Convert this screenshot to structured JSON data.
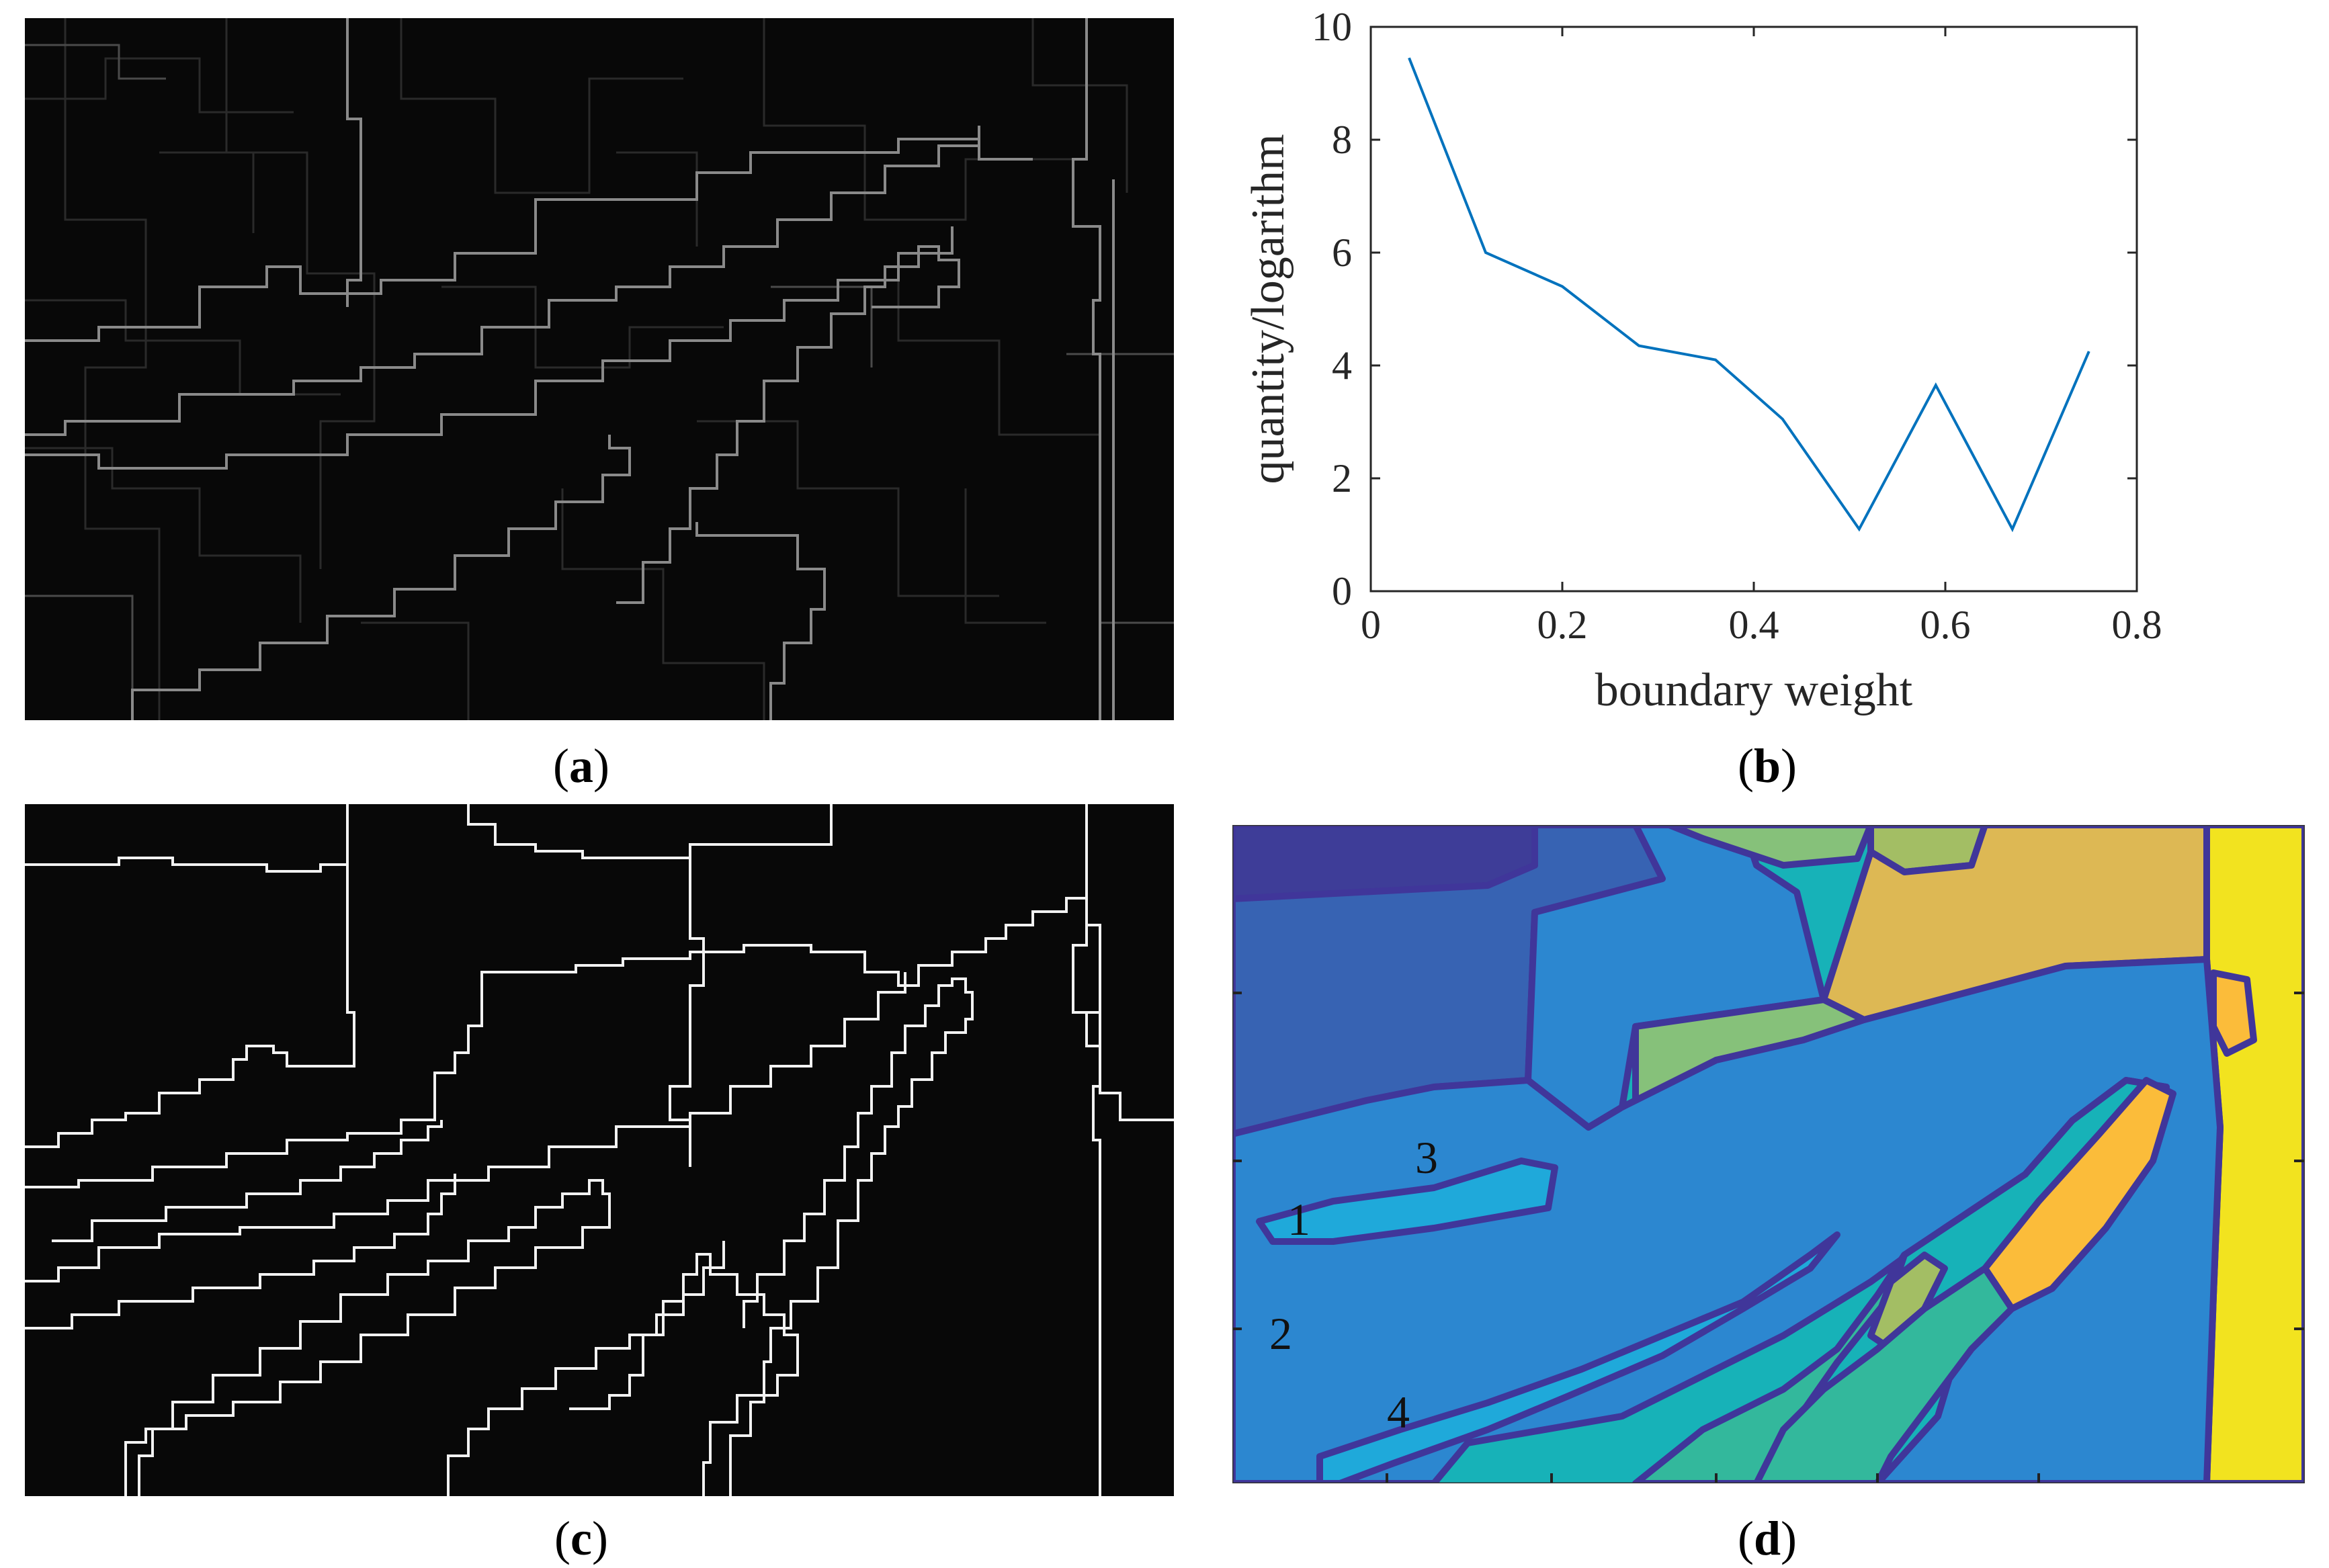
{
  "panels": {
    "a": {
      "open": "(",
      "letter": "a",
      "close": ")"
    },
    "b": {
      "open": "(",
      "letter": "b",
      "close": ")"
    },
    "c": {
      "open": "(",
      "letter": "c",
      "close": ")"
    },
    "d": {
      "open": "(",
      "letter": "d",
      "close": ")"
    }
  },
  "chart_data": {
    "type": "line",
    "title": "",
    "xlabel": "boundary weight",
    "ylabel": "quantity/logarithm",
    "xlim": [
      0,
      0.8
    ],
    "ylim": [
      0,
      10
    ],
    "xticks": [
      0,
      0.2,
      0.4,
      0.6,
      0.8
    ],
    "xtick_labels": [
      "0",
      "0.2",
      "0.4",
      "0.6",
      "0.8"
    ],
    "yticks": [
      0,
      2,
      4,
      6,
      8,
      10
    ],
    "ytick_labels": [
      "0",
      "2",
      "4",
      "6",
      "8",
      "10"
    ],
    "grid": false,
    "series": [
      {
        "color": "#0072BD",
        "x": [
          0.04,
          0.12,
          0.2,
          0.28,
          0.36,
          0.43,
          0.51,
          0.59,
          0.67,
          0.75
        ],
        "values": [
          9.45,
          6.0,
          5.4,
          4.35,
          4.1,
          3.05,
          1.1,
          3.65,
          1.1,
          4.25
        ]
      }
    ]
  },
  "region_labels": [
    {
      "text": "1"
    },
    {
      "text": "3"
    },
    {
      "text": "2"
    },
    {
      "text": "4"
    }
  ],
  "colors": {
    "parula_1": "#3E3D98",
    "parula_2": "#3763B3",
    "parula_3": "#2C87D0",
    "parula_4": "#1FA9DA",
    "parula_5": "#17B2B8",
    "parula_6": "#33B89C",
    "parula_7": "#86C17A",
    "parula_8": "#A3BE64",
    "parula_9": "#DDB854",
    "parula_10": "#FBBC3A",
    "parula_11": "#F2E31F",
    "boundary": "#40369A"
  }
}
